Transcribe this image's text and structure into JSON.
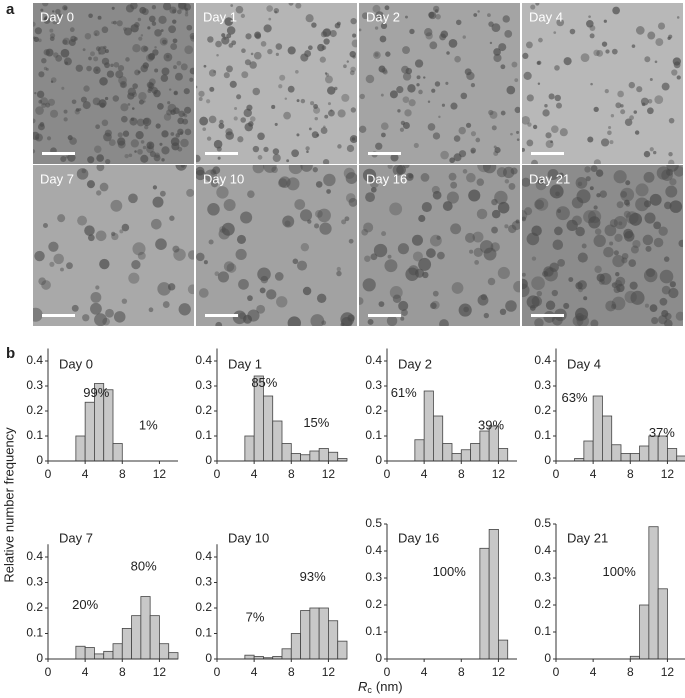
{
  "panel_labels": [
    "a",
    "b"
  ],
  "panel_a": {
    "images": [
      {
        "label": "Day 0"
      },
      {
        "label": "Day 1"
      },
      {
        "label": "Day 2"
      },
      {
        "label": "Day 4"
      },
      {
        "label": "Day 7"
      },
      {
        "label": "Day 10"
      },
      {
        "label": "Day 16"
      },
      {
        "label": "Day 21"
      }
    ]
  },
  "y_label": "Relative number frequency",
  "x_label": {
    "symbol": "R",
    "subscript": "c",
    "unit": "(nm)"
  },
  "chart_data": [
    {
      "type": "histogram",
      "title": "Day 0",
      "color": "#c8c8c8",
      "bins": [
        0,
        1,
        2,
        3,
        4,
        5,
        6,
        7,
        8,
        9,
        10,
        11,
        12,
        13,
        14
      ],
      "values": [
        0,
        0,
        0,
        0.1,
        0.235,
        0.31,
        0.285,
        0.07,
        0,
        0,
        0,
        0,
        0,
        0
      ],
      "xlim": [
        0,
        14
      ],
      "xticks": [
        0,
        4,
        8,
        12
      ],
      "ylim": [
        0,
        0.45
      ],
      "yticks": [
        0,
        0.1,
        0.2,
        0.3,
        0.4
      ],
      "annotations": [
        "99%",
        "1%"
      ]
    },
    {
      "type": "histogram",
      "title": "Day 1",
      "color": "#c8c8c8",
      "bins": [
        0,
        1,
        2,
        3,
        4,
        5,
        6,
        7,
        8,
        9,
        10,
        11,
        12,
        13,
        14
      ],
      "values": [
        0,
        0,
        0,
        0.1,
        0.34,
        0.26,
        0.16,
        0.07,
        0.03,
        0.025,
        0.04,
        0.05,
        0.035,
        0.01
      ],
      "xlim": [
        0,
        14
      ],
      "xticks": [
        0,
        4,
        8,
        12
      ],
      "ylim": [
        0,
        0.45
      ],
      "yticks": [
        0,
        0.1,
        0.2,
        0.3,
        0.4
      ],
      "annotations": [
        "85%",
        "15%"
      ]
    },
    {
      "type": "histogram",
      "title": "Day 2",
      "color": "#c8c8c8",
      "bins": [
        0,
        1,
        2,
        3,
        4,
        5,
        6,
        7,
        8,
        9,
        10,
        11,
        12,
        13,
        14
      ],
      "values": [
        0,
        0,
        0,
        0.085,
        0.28,
        0.18,
        0.07,
        0.03,
        0.045,
        0.07,
        0.12,
        0.14,
        0.05,
        0
      ],
      "xlim": [
        0,
        14
      ],
      "xticks": [
        0,
        4,
        8,
        12
      ],
      "ylim": [
        0,
        0.45
      ],
      "yticks": [
        0,
        0.1,
        0.2,
        0.3,
        0.4
      ],
      "annotations": [
        "61%",
        "39%"
      ]
    },
    {
      "type": "histogram",
      "title": "Day 4",
      "color": "#c8c8c8",
      "bins": [
        0,
        1,
        2,
        3,
        4,
        5,
        6,
        7,
        8,
        9,
        10,
        11,
        12,
        13,
        14
      ],
      "values": [
        0,
        0,
        0.01,
        0.08,
        0.26,
        0.18,
        0.065,
        0.03,
        0.03,
        0.06,
        0.1,
        0.1,
        0.05,
        0.02
      ],
      "xlim": [
        0,
        14
      ],
      "xticks": [
        0,
        4,
        8,
        12
      ],
      "ylim": [
        0,
        0.45
      ],
      "yticks": [
        0,
        0.1,
        0.2,
        0.3,
        0.4
      ],
      "annotations": [
        "63%",
        "37%"
      ]
    },
    {
      "type": "histogram",
      "title": "Day 7",
      "color": "#c8c8c8",
      "bins": [
        0,
        1,
        2,
        3,
        4,
        5,
        6,
        7,
        8,
        9,
        10,
        11,
        12,
        13,
        14
      ],
      "values": [
        0,
        0,
        0,
        0.05,
        0.045,
        0.02,
        0.03,
        0.06,
        0.12,
        0.17,
        0.245,
        0.17,
        0.06,
        0.025
      ],
      "xlim": [
        0,
        14
      ],
      "xticks": [
        0,
        4,
        8,
        12
      ],
      "ylim": [
        0,
        0.45
      ],
      "yticks": [
        0,
        0.1,
        0.2,
        0.3,
        0.4
      ],
      "annotations": [
        "20%",
        "80%"
      ]
    },
    {
      "type": "histogram",
      "title": "Day 10",
      "color": "#c8c8c8",
      "bins": [
        0,
        1,
        2,
        3,
        4,
        5,
        6,
        7,
        8,
        9,
        10,
        11,
        12,
        13,
        14
      ],
      "values": [
        0,
        0,
        0,
        0.015,
        0.01,
        0.005,
        0.01,
        0.04,
        0.1,
        0.19,
        0.2,
        0.2,
        0.15,
        0.07
      ],
      "xlim": [
        0,
        14
      ],
      "xticks": [
        0,
        4,
        8,
        12
      ],
      "ylim": [
        0,
        0.45
      ],
      "yticks": [
        0,
        0.1,
        0.2,
        0.3,
        0.4
      ],
      "annotations": [
        "7%",
        "93%"
      ]
    },
    {
      "type": "histogram",
      "title": "Day 16",
      "color": "#c8c8c8",
      "bins": [
        0,
        1,
        2,
        3,
        4,
        5,
        6,
        7,
        8,
        9,
        10,
        11,
        12,
        13,
        14
      ],
      "values": [
        0,
        0,
        0,
        0,
        0,
        0,
        0,
        0,
        0,
        0,
        0.41,
        0.48,
        0.07,
        0
      ],
      "xlim": [
        0,
        14
      ],
      "xticks": [
        0,
        4,
        8,
        12
      ],
      "ylim": [
        0,
        0.5
      ],
      "yticks": [
        0,
        0.1,
        0.2,
        0.3,
        0.4,
        0.5
      ],
      "annotations": [
        "100%"
      ]
    },
    {
      "type": "histogram",
      "title": "Day 21",
      "color": "#c8c8c8",
      "bins": [
        0,
        1,
        2,
        3,
        4,
        5,
        6,
        7,
        8,
        9,
        10,
        11,
        12,
        13,
        14
      ],
      "values": [
        0,
        0,
        0,
        0,
        0,
        0,
        0,
        0,
        0.01,
        0.2,
        0.49,
        0.26,
        0,
        0
      ],
      "xlim": [
        0,
        14
      ],
      "xticks": [
        0,
        4,
        8,
        12
      ],
      "ylim": [
        0,
        0.5
      ],
      "yticks": [
        0,
        0.1,
        0.2,
        0.3,
        0.4,
        0.5
      ],
      "annotations": [
        "100%"
      ]
    }
  ]
}
